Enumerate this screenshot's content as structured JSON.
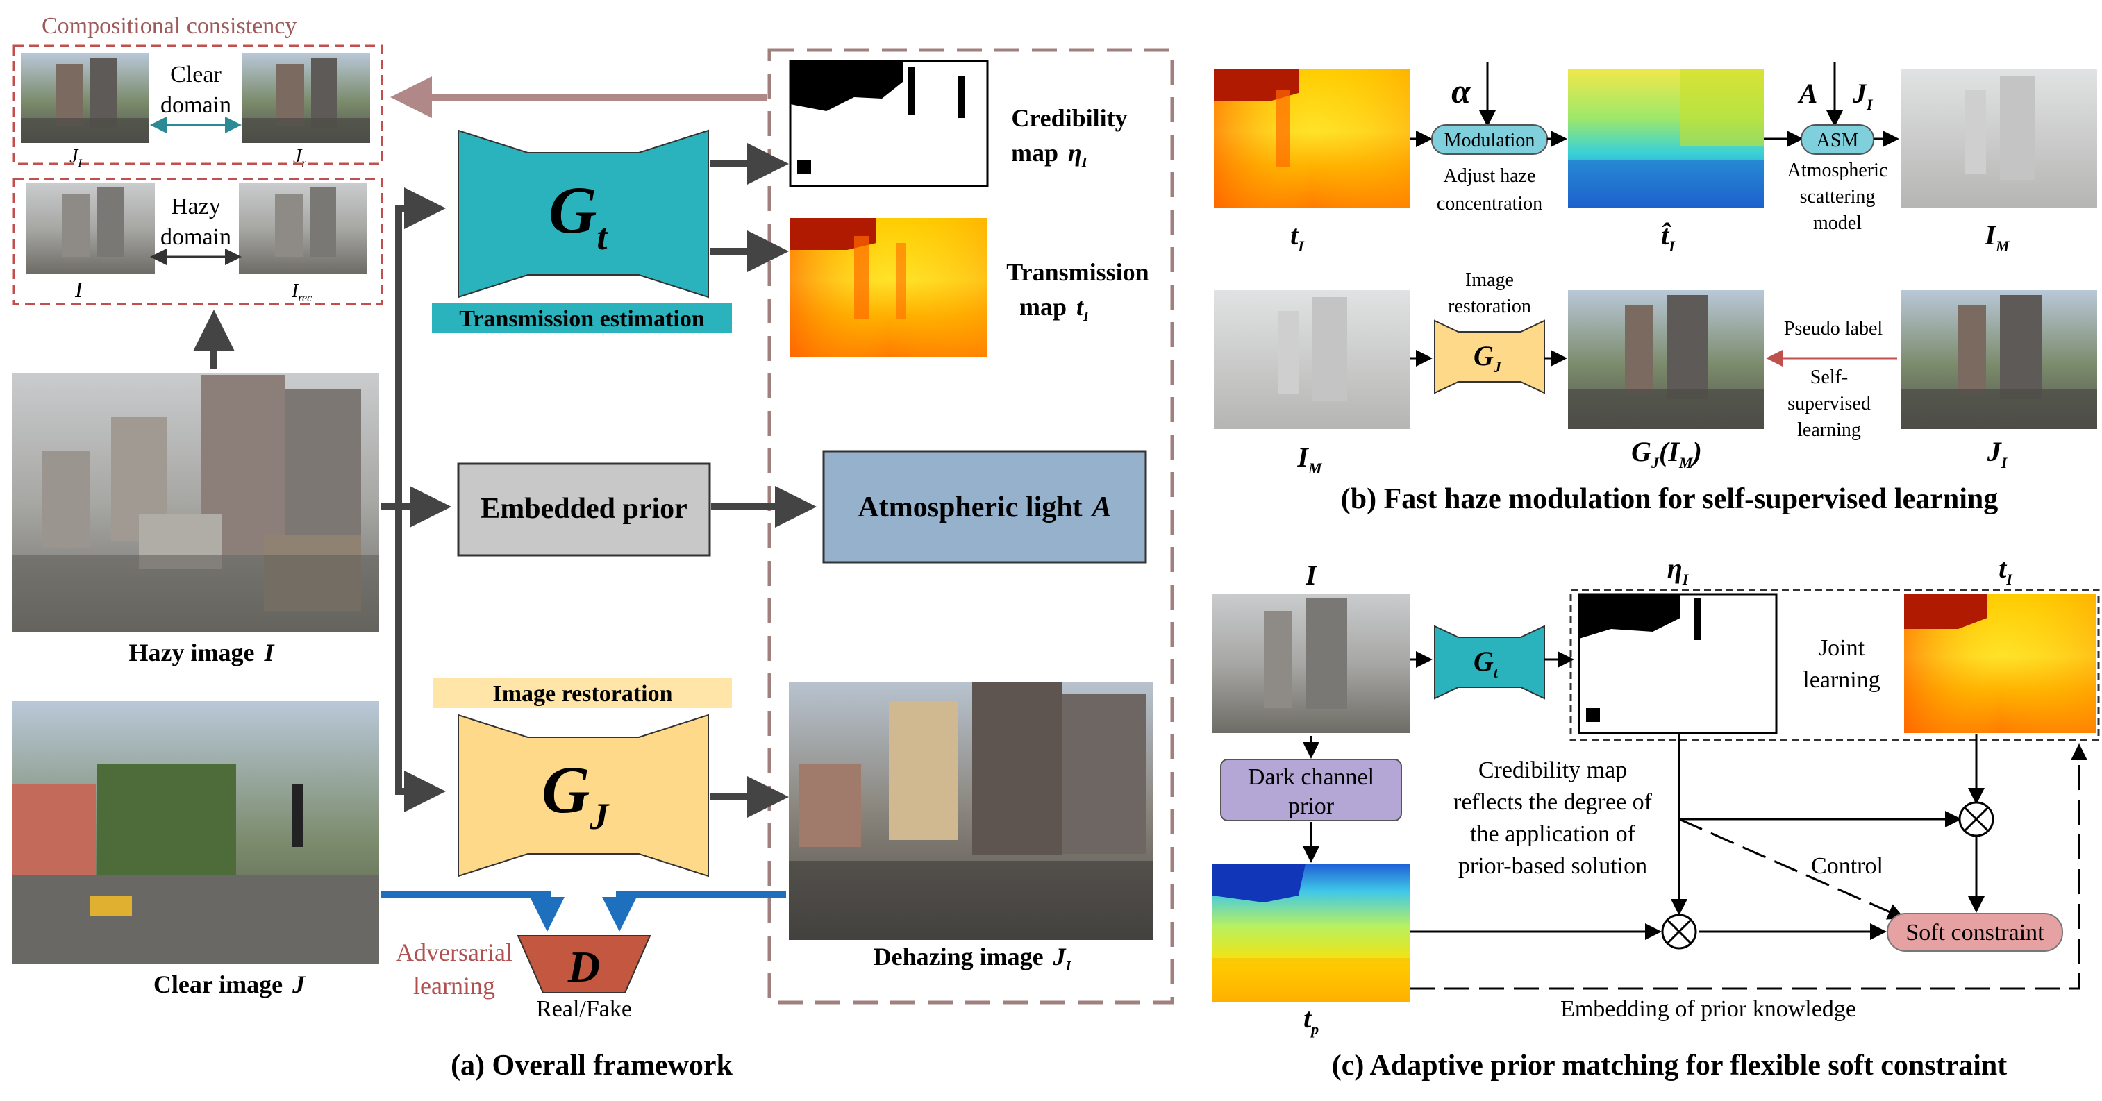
{
  "colors": {
    "teal": "#2ab3bd",
    "yellow": "#ffd98a",
    "gray_box": "#c8c8c8",
    "blue_box": "#96b1cc",
    "dashed_brown": "#a07f7f",
    "dashed_red": "#c0504d",
    "blue_arrow": "#1f6fbf",
    "discriminator": "#c4573f",
    "purple": "#b4a7d6",
    "modulation": "#7fd0dc",
    "soft": "#e6a2a2",
    "pseudo_red": "#c0504d"
  },
  "panel_a": {
    "caption": "(a) Overall framework",
    "consistency_title": "Compositional consistency",
    "clear_domain": [
      "Clear",
      "domain"
    ],
    "hazy_domain": [
      "Hazy",
      "domain"
    ],
    "label_J_I": "J",
    "label_J_I_sub": "I",
    "label_J_r": "J",
    "label_J_r_sub": "r",
    "label_I": "I",
    "label_I_rec": "I",
    "label_I_rec_sub": "rec",
    "hazy_image": "Hazy image",
    "hazy_image_sym": "I",
    "clear_image": "Clear image",
    "clear_image_sym": "J",
    "gt_main": "G",
    "gt_sub": "t",
    "transmission_estimation": "Transmission estimation",
    "credibility_map": "Credibility",
    "credibility_map2": "map",
    "eta": "η",
    "eta_sub": "I",
    "transmission_map": "Transmission",
    "transmission_map2": "map",
    "t_sym": "t",
    "t_sub": "I",
    "embedded_prior": "Embedded prior",
    "atmospheric_light": "Atmospheric light",
    "atmospheric_sym": "A",
    "image_restoration": "Image restoration",
    "gj_main": "G",
    "gj_sub": "J",
    "adversarial": [
      "Adversarial",
      "learning"
    ],
    "d_sym": "D",
    "real_fake": "Real/Fake",
    "dehazing_image": "Dehazing image",
    "dehazing_sym": "J",
    "dehazing_sub": "I"
  },
  "panel_b": {
    "caption": "(b) Fast haze modulation for self-supervised learning",
    "alpha": "α",
    "modulation": "Modulation",
    "adjust": [
      "Adjust haze",
      "concentration"
    ],
    "A": "A",
    "J_I": "J",
    "J_I_sub": "I",
    "asm": "ASM",
    "asm_desc": [
      "Atmospheric",
      "scattering",
      "model"
    ],
    "t_I": "t",
    "t_I_sub": "I",
    "t_hat": "t̂",
    "t_hat_sub": "I",
    "I_M": "I",
    "I_M_sub": "M",
    "image_restoration": [
      "Image",
      "restoration"
    ],
    "gj_main": "G",
    "gj_sub": "J",
    "pseudo_label": "Pseudo label",
    "self_supervised": [
      "Self-",
      "supervised",
      "learning"
    ],
    "I_M2": "I",
    "I_M2_sub": "M",
    "gj_im_G": "G",
    "gj_im_J": "J",
    "gj_im_open": "(I",
    "gj_im_M": "M",
    "gj_im_close": ")",
    "J_I2": "J",
    "J_I2_sub": "I"
  },
  "panel_c": {
    "caption": "(c) Adaptive prior matching for flexible soft constraint",
    "I": "I",
    "eta": "η",
    "eta_sub": "I",
    "t_I": "t",
    "t_I_sub": "I",
    "gt_main": "G",
    "gt_sub": "t",
    "joint": [
      "Joint",
      "learning"
    ],
    "dark_channel": [
      "Dark channel",
      "prior"
    ],
    "credibility_text": [
      "Credibility map",
      "reflects the degree of",
      "the application of",
      "prior-based solution"
    ],
    "control": "Control",
    "soft_constraint": "Soft constraint",
    "embedding": "Embedding of prior knowledge",
    "t_p": "t",
    "t_p_sub": "p"
  }
}
